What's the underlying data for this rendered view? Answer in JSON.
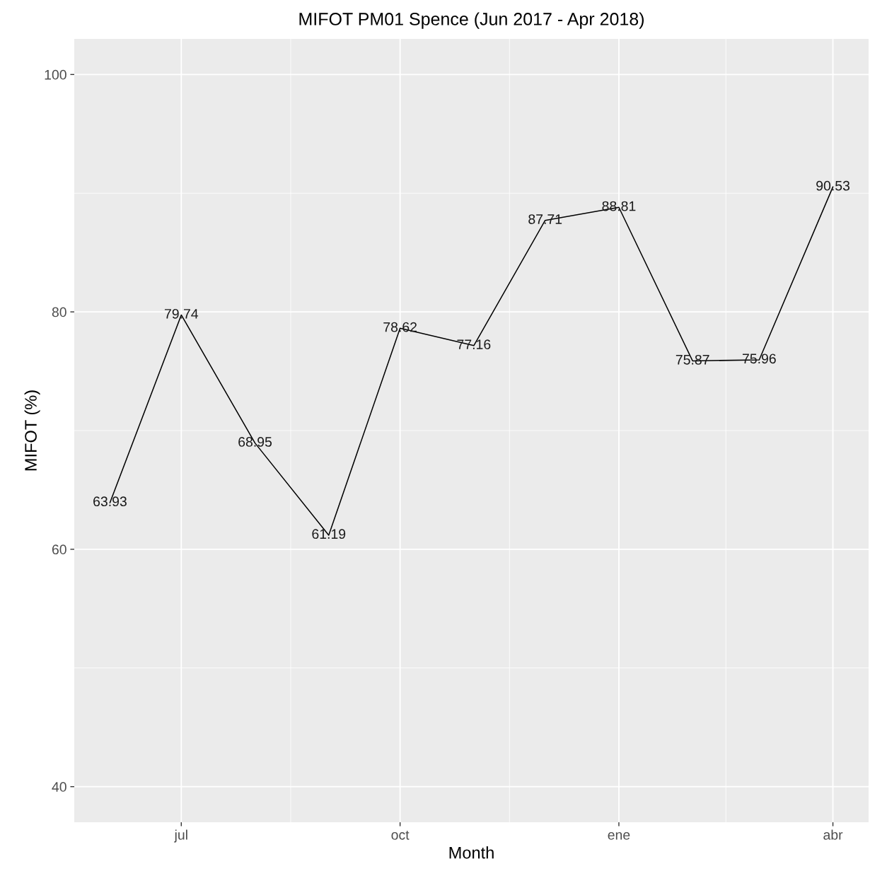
{
  "chart_data": {
    "type": "line",
    "title": "MIFOT PM01 Spence (Jun 2017 - Apr 2018)",
    "xlabel": "Month",
    "ylabel": "MIFOT (%)",
    "x": [
      "2017-06-01",
      "2017-07-01",
      "2017-08-01",
      "2017-09-01",
      "2017-10-01",
      "2017-11-01",
      "2017-12-01",
      "2018-01-01",
      "2018-02-01",
      "2018-03-01",
      "2018-04-01"
    ],
    "series": [
      {
        "color": "#000000",
        "values": [
          63.93,
          79.74,
          68.95,
          61.19,
          78.62,
          77.16,
          87.71,
          88.81,
          75.87,
          75.96,
          90.53
        ]
      }
    ],
    "data_labels": true,
    "grid": true,
    "legend": false,
    "marker": "none",
    "line_style": "solid",
    "xlim": [
      "2017-05-17",
      "2018-04-16"
    ],
    "xticks": [
      {
        "value": "2017-07-01",
        "label": "jul"
      },
      {
        "value": "2017-10-01",
        "label": "oct"
      },
      {
        "value": "2018-01-01",
        "label": "ene"
      },
      {
        "value": "2018-04-01",
        "label": "abr"
      }
    ],
    "ylim": [
      37,
      103
    ],
    "yticks": [
      40,
      60,
      80,
      100
    ]
  }
}
